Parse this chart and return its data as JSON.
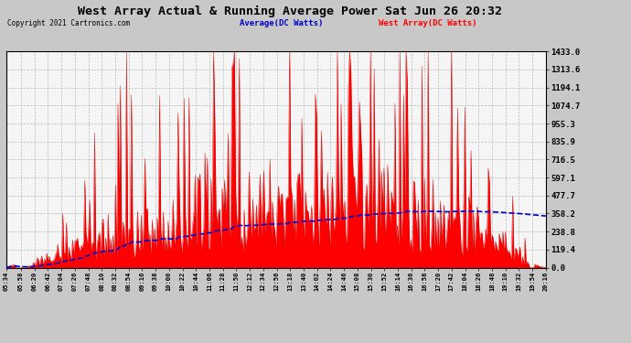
{
  "title": "West Array Actual & Running Average Power Sat Jun 26 20:32",
  "copyright": "Copyright 2021 Cartronics.com",
  "legend_avg": "Average(DC Watts)",
  "legend_west": "West Array(DC Watts)",
  "ylabel_right_ticks": [
    0.0,
    119.4,
    238.8,
    358.2,
    477.7,
    597.1,
    716.5,
    835.9,
    955.3,
    1074.7,
    1194.1,
    1313.6,
    1433.0
  ],
  "ymax": 1433.0,
  "ymin": 0.0,
  "bg_color": "#c8c8c8",
  "plot_bg_color": "#f5f5f5",
  "grid_color": "#cccccc",
  "title_color": "#000000",
  "avg_line_color": "#0000cc",
  "west_fill_color": "#ff0000",
  "west_edge_color": "#cc0000",
  "copyright_color": "#000000",
  "legend_avg_color": "#0000cc",
  "legend_west_color": "#ff0000",
  "tick_times": [
    "05:34",
    "05:58",
    "06:20",
    "06:42",
    "07:04",
    "07:26",
    "07:48",
    "08:10",
    "08:32",
    "08:54",
    "09:16",
    "09:38",
    "10:00",
    "10:22",
    "10:44",
    "11:06",
    "11:28",
    "11:50",
    "12:12",
    "12:34",
    "12:56",
    "13:18",
    "13:40",
    "14:02",
    "14:24",
    "14:46",
    "15:08",
    "15:30",
    "15:52",
    "16:14",
    "16:36",
    "16:58",
    "17:20",
    "17:42",
    "18:04",
    "18:26",
    "18:48",
    "19:10",
    "19:32",
    "19:54",
    "20:16"
  ],
  "start_time": "05:34",
  "end_time": "20:16"
}
